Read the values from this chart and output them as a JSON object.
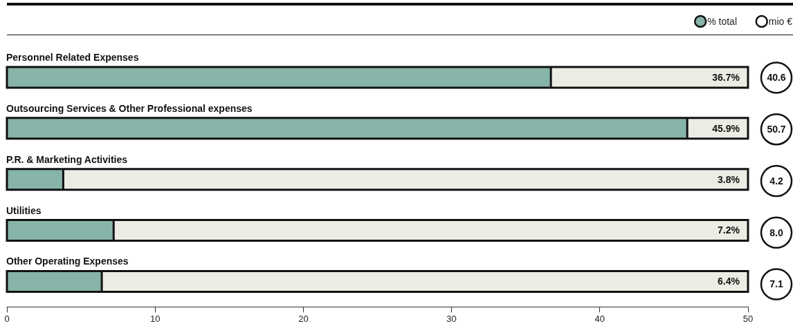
{
  "chart_data": [
    {
      "type": "bar",
      "orientation": "horizontal",
      "categories": [
        "Personnel Related Expenses",
        "Outsourcing Services & Other Professional expenses",
        "P.R. & Marketing Activities",
        "Utilities",
        "Other Operating Expenses"
      ],
      "series": [
        {
          "name": "% total",
          "color": "#87b4a8",
          "values": [
            36.7,
            45.9,
            3.8,
            7.2,
            6.4
          ],
          "value_labels": [
            "36.7%",
            "45.9%",
            "3.8%",
            "7.2%",
            "6.4%"
          ]
        }
      ],
      "xlim": [
        0,
        50
      ],
      "xticks": [
        0,
        10,
        20,
        30,
        40,
        50
      ],
      "legend": "top right"
    },
    {
      "type": "other",
      "categories": [
        null,
        null,
        null,
        null,
        null
      ],
      "series": [
        {
          "name": "mio €",
          "color": "#ffffff",
          "values": [
            40.6,
            50.7,
            4.2,
            8.0,
            7.1
          ],
          "value_labels": [
            "40.6",
            "50.7",
            "4.2",
            "8.0",
            "7.1"
          ]
        }
      ],
      "legend": "top right"
    }
  ]
}
